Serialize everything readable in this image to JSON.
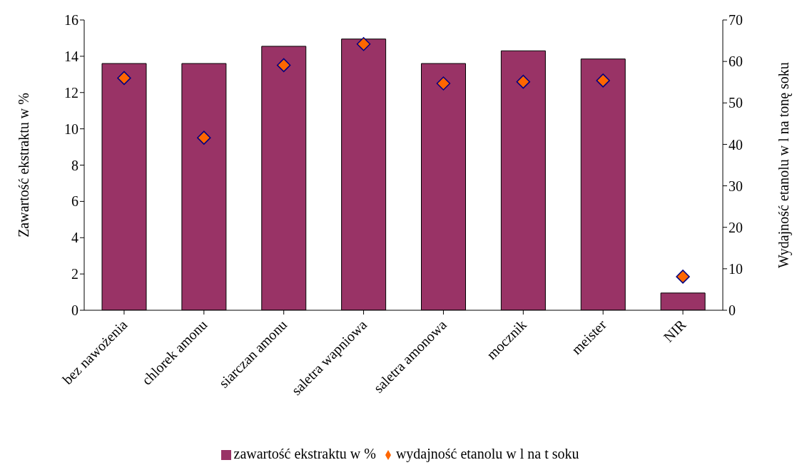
{
  "chart_data": {
    "type": "bar",
    "ylabel": "Zawartość ekstraktu w %",
    "y2label": "Wydajność etanolu w l na tonę soku",
    "categories": [
      "bez nawożenia",
      "chlorek amonu",
      "siarczan amonu",
      "saletra wapniowa",
      "saletra amonowa",
      "mocznik",
      "meister",
      "NIR"
    ],
    "series": [
      {
        "name": "zawartość ekstraktu w %",
        "color": "#993366",
        "values": [
          13.6,
          13.6,
          14.55,
          14.95,
          13.6,
          14.3,
          13.85,
          0.95
        ]
      },
      {
        "name": "wydajność etanolu w l na t soku",
        "type": "scatter",
        "axis": "y2",
        "marker": "diamond",
        "color": "#ff6600",
        "values": [
          56.0,
          41.6,
          59.1,
          64.2,
          54.7,
          55.1,
          55.4,
          8.1
        ]
      }
    ],
    "ylim": [
      0,
      16
    ],
    "yticks": [
      0,
      2,
      4,
      6,
      8,
      10,
      12,
      14,
      16
    ],
    "y2lim": [
      0,
      70
    ],
    "y2ticks": [
      0,
      10,
      20,
      30,
      40,
      50,
      60,
      70
    ],
    "grid": false,
    "legend": "bottom"
  }
}
